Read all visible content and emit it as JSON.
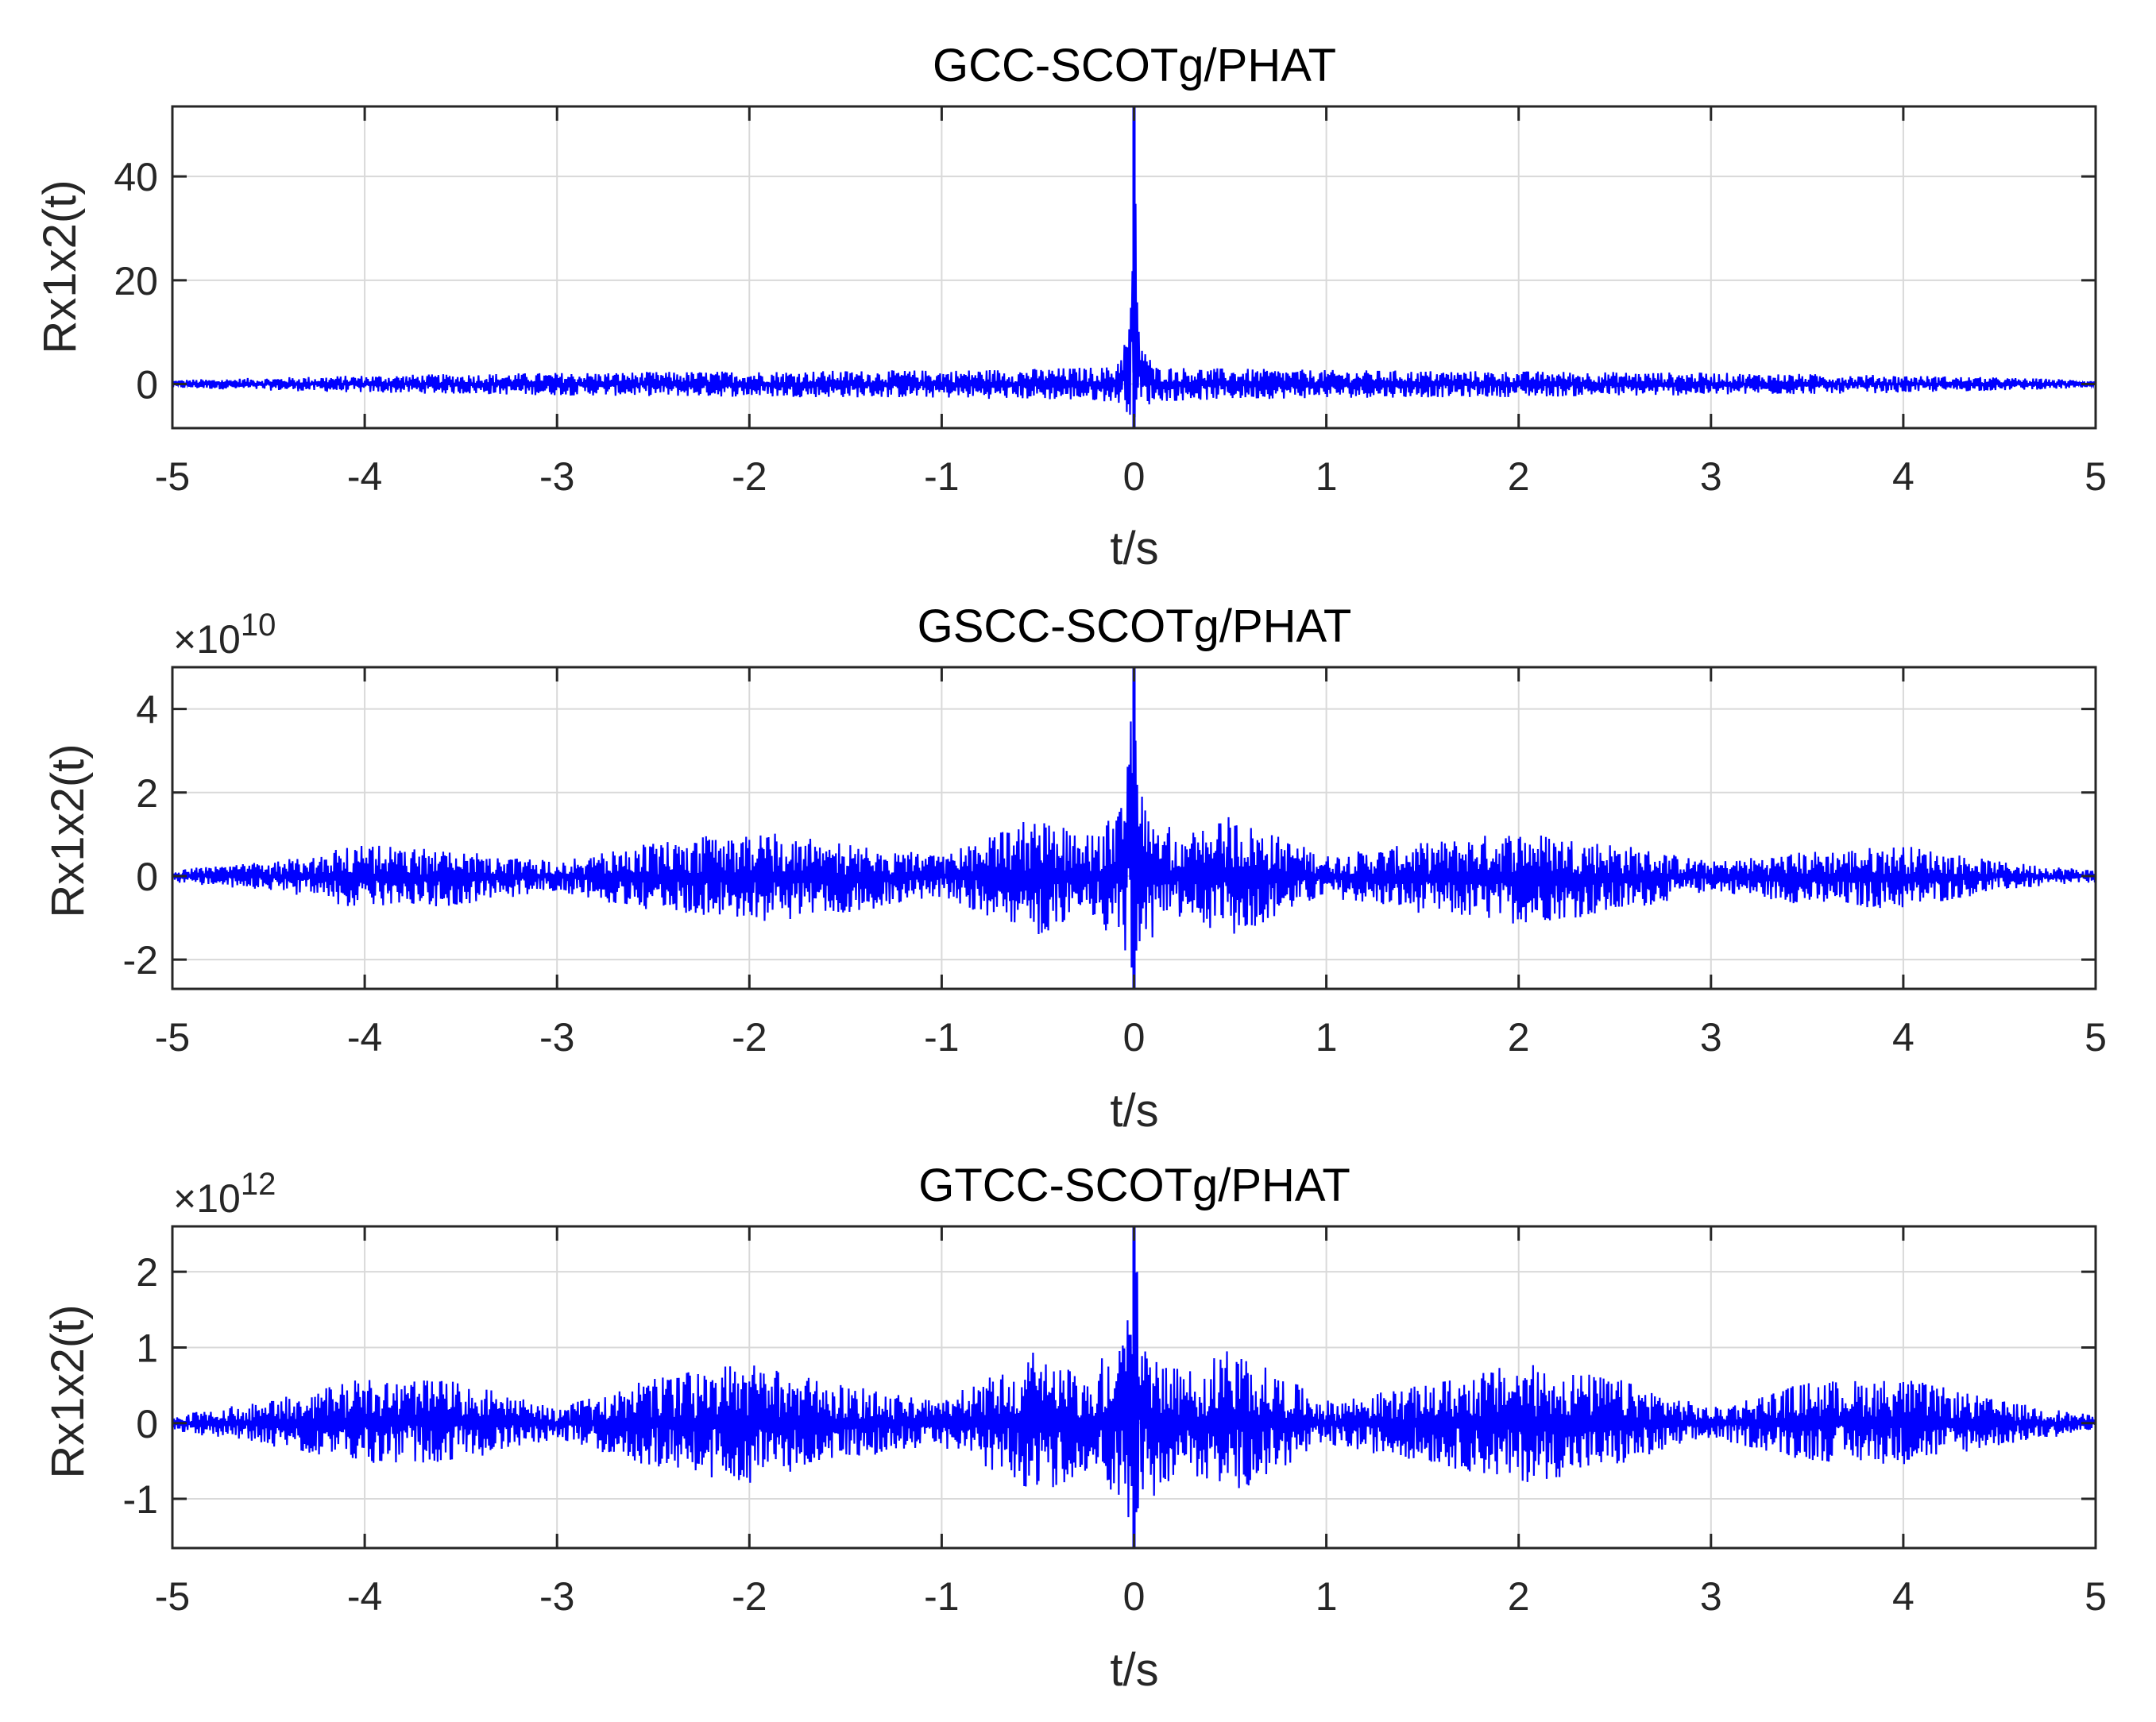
{
  "colors": {
    "line": "#0000ff",
    "axes": "#262626",
    "grid": "#d9d9d9",
    "background": "#ffffff"
  },
  "chart_data": [
    {
      "type": "line",
      "title": "GCC-SCOTg/PHAT",
      "xlabel": "t/s",
      "ylabel": "Rx1x2(t)",
      "exponent_label": "",
      "exponent_base": "",
      "exponent_power": "",
      "xlim": [
        -5,
        5
      ],
      "ylim": [
        -8.5,
        53.5
      ],
      "x_ticks": [
        -5,
        -4,
        -3,
        -2,
        -1,
        0,
        1,
        2,
        3,
        4,
        5
      ],
      "y_ticks": [
        0,
        20,
        40
      ],
      "grid": true,
      "series": [
        {
          "color": "#0000ff",
          "envelope": {
            "t": [
              -5,
              -4,
              -3,
              -2,
              -1,
              -0.5,
              -0.1,
              -0.02,
              0,
              0.02,
              0.1,
              0.5,
              1,
              2,
              3,
              4,
              5
            ],
            "upper": [
              0.8,
              1.7,
              2.2,
              2.5,
              2.7,
              3.0,
              3.4,
              12.0,
              53.5,
              12.0,
              3.4,
              3.0,
              2.7,
              2.5,
              2.2,
              1.7,
              0.8
            ],
            "lower": [
              -0.8,
              -1.7,
              -2.2,
              -2.5,
              -2.7,
              -3.0,
              -3.4,
              -6.0,
              -8.5,
              -6.0,
              -3.4,
              -3.0,
              -2.7,
              -2.5,
              -2.2,
              -1.7,
              -0.8
            ]
          }
        }
      ]
    },
    {
      "type": "line",
      "title": "GSCC-SCOTg/PHAT",
      "xlabel": "t/s",
      "ylabel": "Rx1x2(t)",
      "exponent_label": "×10¹⁰",
      "exponent_base": "×10",
      "exponent_power": "10",
      "xlim": [
        -5,
        5
      ],
      "ylim": [
        -2.7,
        5.0
      ],
      "x_ticks": [
        -5,
        -4,
        -3,
        -2,
        -1,
        0,
        1,
        2,
        3,
        4,
        5
      ],
      "y_ticks": [
        -2,
        0,
        2,
        4
      ],
      "grid": true,
      "series": [
        {
          "color": "#0000ff",
          "envelope": {
            "t": [
              -5,
              -4.5,
              -4,
              -3.5,
              -3,
              -2.5,
              -2,
              -1.5,
              -1,
              -0.5,
              -0.25,
              -0.05,
              0,
              0.05,
              0.25,
              0.5,
              1,
              1.5,
              2,
              2.5,
              3,
              3.5,
              4,
              4.5,
              5
            ],
            "upper": [
              0.15,
              0.35,
              0.75,
              0.6,
              0.35,
              0.8,
              1.1,
              0.8,
              0.5,
              1.45,
              0.95,
              1.7,
              5.0,
              1.7,
              0.95,
              1.45,
              0.5,
              0.8,
              1.1,
              0.8,
              0.35,
              0.6,
              0.75,
              0.35,
              0.15
            ],
            "lower": [
              -0.15,
              -0.35,
              -0.8,
              -0.7,
              -0.35,
              -0.9,
              -1.15,
              -0.9,
              -0.5,
              -1.45,
              -0.95,
              -1.7,
              -2.7,
              -1.7,
              -0.95,
              -1.45,
              -0.5,
              -0.9,
              -1.15,
              -0.9,
              -0.35,
              -0.7,
              -0.8,
              -0.35,
              -0.15
            ]
          }
        }
      ]
    },
    {
      "type": "line",
      "title": "GTCC-SCOTg/PHAT",
      "xlabel": "t/s",
      "ylabel": "Rx1x2(t)",
      "exponent_label": "×10¹²",
      "exponent_base": "×10",
      "exponent_power": "12",
      "xlim": [
        -5,
        5
      ],
      "ylim": [
        -1.65,
        2.6
      ],
      "x_ticks": [
        -5,
        -4,
        -3,
        -2,
        -1,
        0,
        1,
        2,
        3,
        4,
        5
      ],
      "y_ticks": [
        -1,
        0,
        1,
        2
      ],
      "grid": true,
      "series": [
        {
          "color": "#0000ff",
          "envelope": {
            "t": [
              -5,
              -4.5,
              -4,
              -3.5,
              -3,
              -2.5,
              -2,
              -1.5,
              -1,
              -0.5,
              -0.25,
              -0.05,
              0,
              0.05,
              0.25,
              0.5,
              1,
              1.5,
              2,
              2.5,
              3,
              3.5,
              4,
              4.5,
              5
            ],
            "upper": [
              0.1,
              0.3,
              0.6,
              0.55,
              0.2,
              0.6,
              0.8,
              0.5,
              0.3,
              1.0,
              0.65,
              1.2,
              2.6,
              1.2,
              0.65,
              1.0,
              0.3,
              0.5,
              0.8,
              0.6,
              0.2,
              0.55,
              0.6,
              0.3,
              0.1
            ],
            "lower": [
              -0.1,
              -0.3,
              -0.55,
              -0.5,
              -0.2,
              -0.6,
              -0.8,
              -0.5,
              -0.3,
              -0.95,
              -0.65,
              -1.1,
              -1.65,
              -1.1,
              -0.65,
              -0.95,
              -0.3,
              -0.5,
              -0.8,
              -0.6,
              -0.2,
              -0.5,
              -0.55,
              -0.3,
              -0.1
            ]
          }
        }
      ]
    }
  ]
}
